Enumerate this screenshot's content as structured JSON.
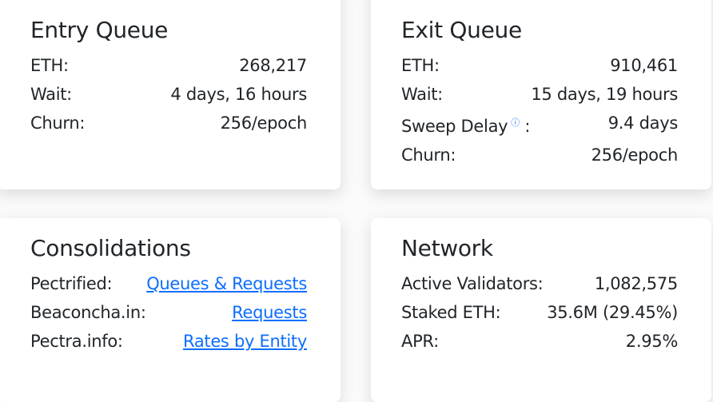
{
  "entry_queue": {
    "title": "Entry Queue",
    "rows": [
      {
        "label": "ETH:",
        "value": "268,217"
      },
      {
        "label": "Wait:",
        "value": "4 days, 16 hours"
      },
      {
        "label": "Churn:",
        "value": "256/epoch"
      }
    ]
  },
  "exit_queue": {
    "title": "Exit Queue",
    "rows": [
      {
        "label": "ETH:",
        "value": "910,461"
      },
      {
        "label": "Wait:",
        "value": "15 days, 19 hours"
      },
      {
        "label": "Sweep Delay",
        "suffix": ":",
        "icon": "info-icon",
        "value": "9.4 days"
      },
      {
        "label": "Churn:",
        "value": "256/epoch"
      }
    ]
  },
  "consolidations": {
    "title": "Consolidations",
    "rows": [
      {
        "label": "Pectrified:",
        "link": "Queues & Requests"
      },
      {
        "label": "Beaconcha.in:",
        "link": "Requests"
      },
      {
        "label": "Pectra.info:",
        "link": "Rates by Entity"
      }
    ]
  },
  "network": {
    "title": "Network",
    "rows": [
      {
        "label": "Active Validators:",
        "value": "1,082,575"
      },
      {
        "label": "Staked ETH:",
        "value": "35.6M (29.45%)"
      },
      {
        "label": "APR:",
        "value": "2.95%"
      }
    ]
  },
  "colors": {
    "link": "#0d6efd",
    "text": "#212529"
  }
}
